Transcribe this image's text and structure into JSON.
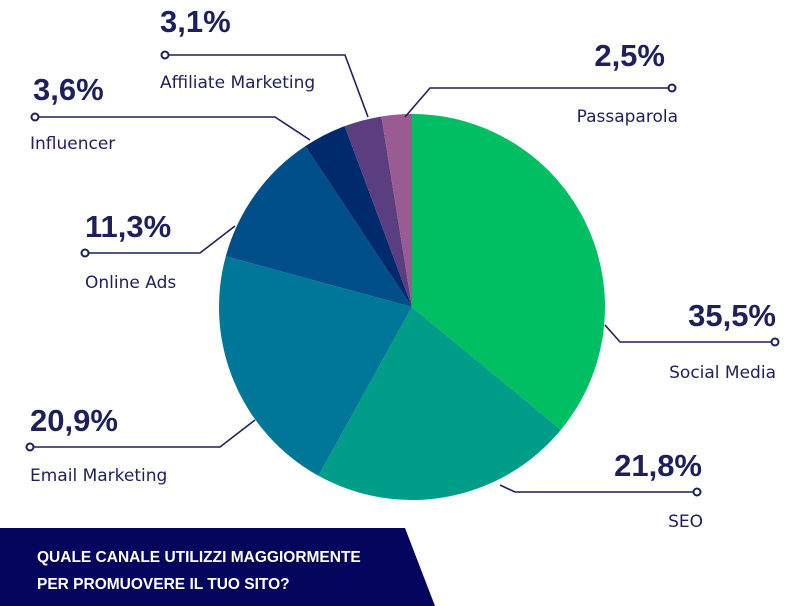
{
  "chart_data": {
    "type": "pie",
    "title": "QUALE CANALE UTILIZZI MAGGIORMENTE\nPER PROMUOVERE IL TUO SITO?",
    "start": "top",
    "direction": "clockwise",
    "slices": [
      {
        "label": "Social Media",
        "value": 35.5,
        "display": "35,5%",
        "color": "#00bf63"
      },
      {
        "label": "SEO",
        "value": 21.8,
        "display": "21,8%",
        "color": "#009e89"
      },
      {
        "label": "Email Marketing",
        "value": 20.9,
        "display": "20,9%",
        "color": "#007799"
      },
      {
        "label": "Online Ads",
        "value": 11.3,
        "display": "11,3%",
        "color": "#004e8a"
      },
      {
        "label": "Influencer",
        "value": 3.6,
        "display": "3,6%",
        "color": "#002a6b"
      },
      {
        "label": "Affiliate Marketing",
        "value": 3.1,
        "display": "3,1%",
        "color": "#5b3e80"
      },
      {
        "label": "Passaparola",
        "value": 2.5,
        "display": "2,5%",
        "color": "#9a5a92"
      }
    ]
  },
  "colors": {
    "text": "#1f1f5c",
    "banner": "#05055e",
    "leader": "#1f1f5c"
  }
}
